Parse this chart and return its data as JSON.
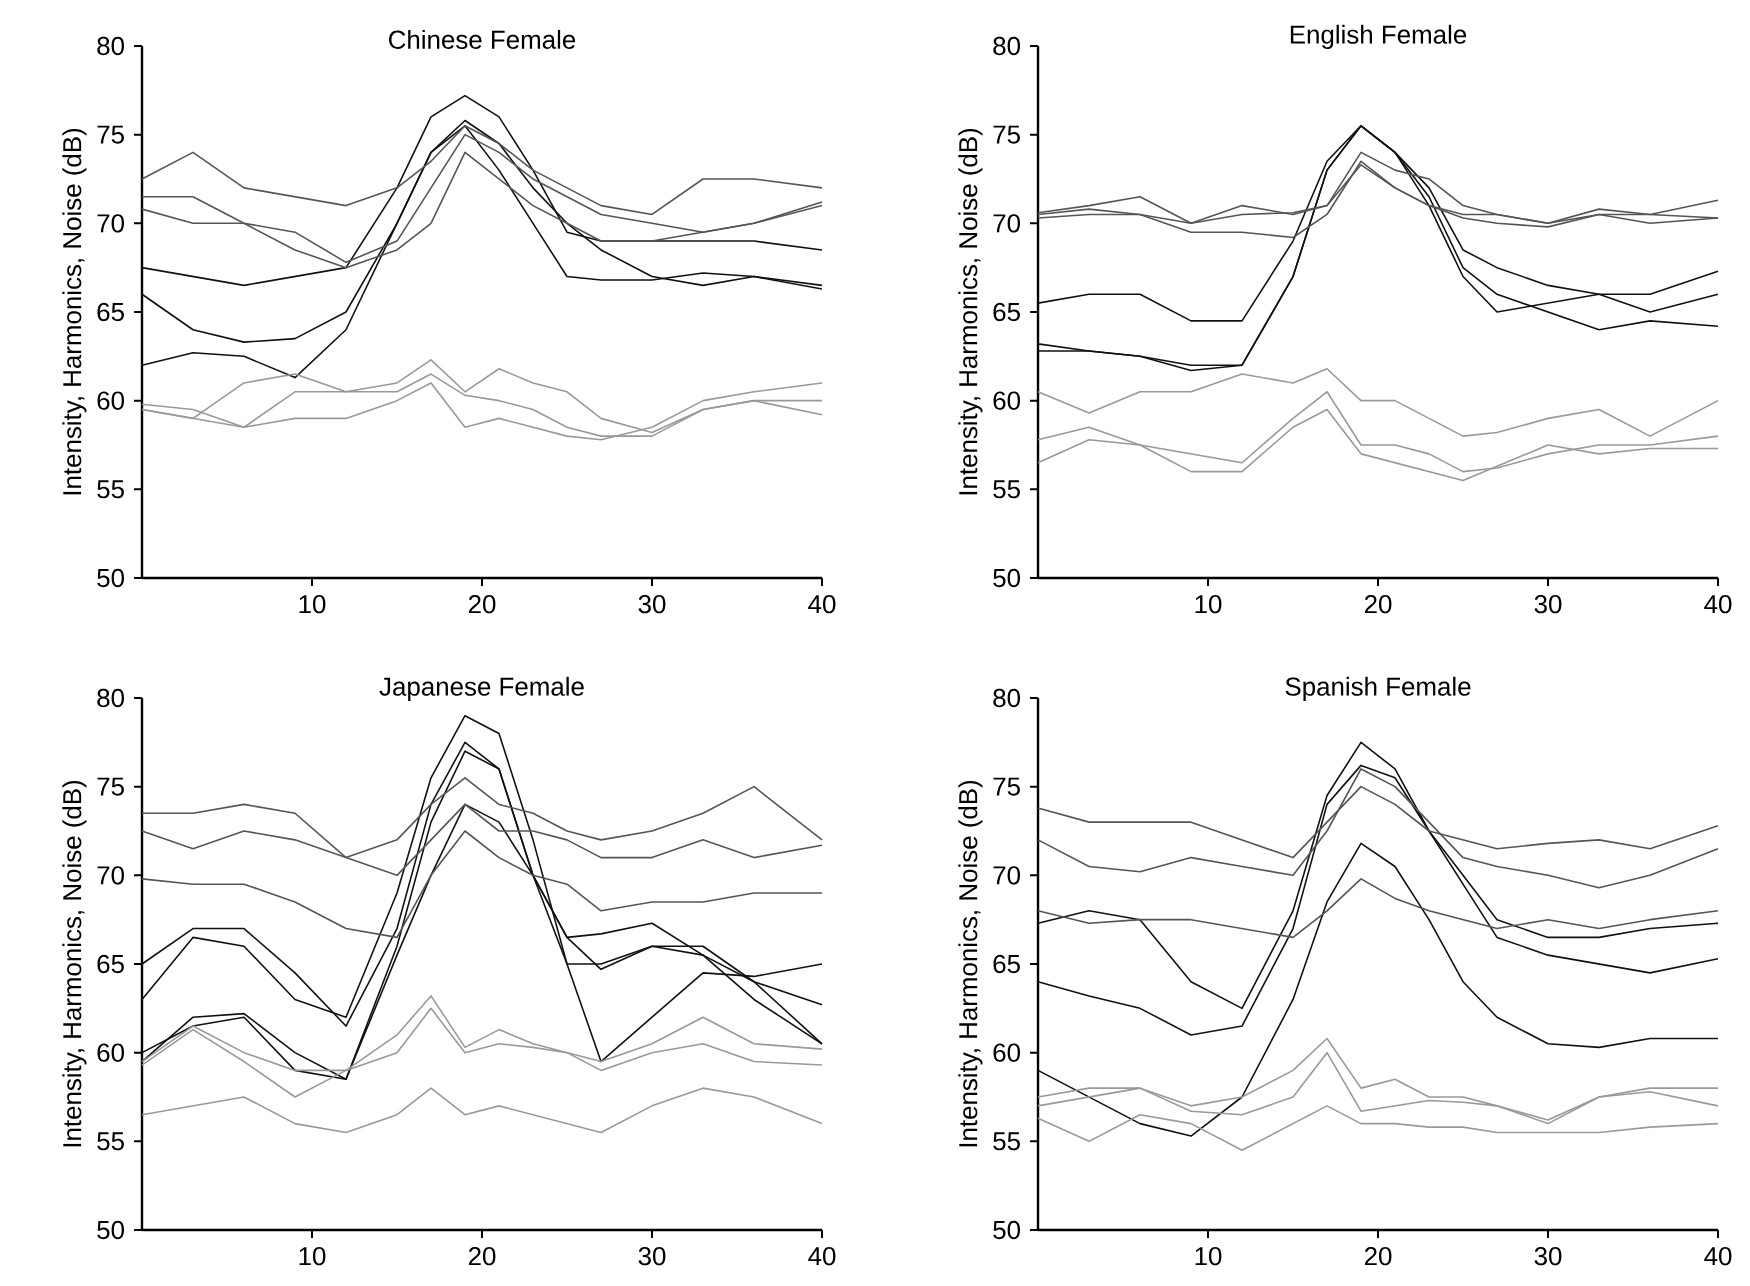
{
  "chart_data": [
    {
      "type": "line",
      "title": "Chinese Female",
      "ylabel": "Intensity, Harmonics, Noise (dB)",
      "x": [
        0,
        3,
        6,
        9,
        12,
        15,
        17,
        19,
        21,
        23,
        25,
        27,
        30,
        33,
        36,
        40
      ],
      "xlim": [
        0,
        40
      ],
      "xticks": [
        10,
        20,
        30,
        40
      ],
      "ylim": [
        50,
        80
      ],
      "yticks": [
        50,
        55,
        60,
        65,
        70,
        75,
        80
      ],
      "series": [
        {
          "color": "#111111",
          "values": [
            67.5,
            67,
            66.5,
            67,
            67.5,
            72,
            76,
            77.2,
            76,
            73,
            69.5,
            69,
            69,
            69,
            69,
            68.5
          ]
        },
        {
          "color": "#111111",
          "values": [
            66,
            64,
            63.3,
            63.5,
            65,
            70,
            74,
            75.8,
            74.5,
            72,
            70,
            68.5,
            67,
            66.5,
            67,
            66.5
          ]
        },
        {
          "color": "#111111",
          "values": [
            62,
            62.7,
            62.5,
            61.3,
            64,
            70,
            74,
            75.5,
            73,
            70,
            67,
            66.8,
            66.8,
            67.2,
            67,
            66.3
          ]
        },
        {
          "color": "#555555",
          "values": [
            72.5,
            74,
            72,
            71.5,
            71,
            72,
            73.5,
            75.5,
            74.5,
            73,
            72,
            71,
            70.5,
            72.5,
            72.5,
            72
          ]
        },
        {
          "color": "#555555",
          "values": [
            71.5,
            71.5,
            70,
            69.5,
            67.8,
            69,
            72,
            75,
            74,
            72.5,
            71.5,
            70.5,
            70,
            69.5,
            70,
            71.2
          ]
        },
        {
          "color": "#555555",
          "values": [
            70.8,
            70,
            70,
            68.5,
            67.5,
            68.5,
            70,
            74,
            72.5,
            71,
            70,
            69,
            69,
            69.5,
            70,
            71
          ]
        },
        {
          "color": "#999999",
          "values": [
            59.8,
            59.5,
            58.5,
            59,
            59,
            60,
            61,
            58.5,
            59,
            58.5,
            58,
            57.8,
            58.5,
            60,
            60.5,
            61
          ]
        },
        {
          "color": "#999999",
          "values": [
            59.5,
            59,
            61,
            61.5,
            60.5,
            61,
            62.3,
            60.5,
            61.8,
            61,
            60.5,
            59,
            58.2,
            59.5,
            60,
            60
          ]
        },
        {
          "color": "#999999",
          "values": [
            59.5,
            59,
            58.5,
            60.5,
            60.5,
            60.5,
            61.5,
            60.3,
            60,
            59.5,
            58.5,
            58,
            58,
            59.5,
            60,
            59.2
          ]
        }
      ]
    },
    {
      "type": "line",
      "title": "English Female",
      "ylabel": "Intensity, Harmonics, Noise (dB)",
      "x": [
        0,
        3,
        6,
        9,
        12,
        15,
        17,
        19,
        21,
        23,
        25,
        27,
        30,
        33,
        36,
        40
      ],
      "xlim": [
        0,
        40
      ],
      "xticks": [
        10,
        20,
        30,
        40
      ],
      "ylim": [
        50,
        80
      ],
      "yticks": [
        50,
        55,
        60,
        65,
        70,
        75,
        80
      ],
      "series": [
        {
          "color": "#111111",
          "values": [
            65.5,
            66,
            66,
            64.5,
            64.5,
            69,
            73.5,
            75.5,
            74,
            71,
            67,
            65,
            65.5,
            66,
            66,
            67.3
          ]
        },
        {
          "color": "#111111",
          "values": [
            63.2,
            62.8,
            62.5,
            62,
            62,
            67,
            73,
            75.5,
            74,
            72,
            68.5,
            67.5,
            66.5,
            66,
            65,
            66
          ]
        },
        {
          "color": "#111111",
          "values": [
            62.8,
            62.8,
            62.5,
            61.7,
            62,
            67,
            73,
            75.5,
            74,
            71.5,
            67.5,
            66,
            65,
            64,
            64.5,
            64.2
          ]
        },
        {
          "color": "#555555",
          "values": [
            70.6,
            71,
            71.5,
            70,
            71,
            70.5,
            71,
            74,
            73,
            72.5,
            71,
            70.5,
            70,
            70.5,
            70.5,
            71.3
          ]
        },
        {
          "color": "#555555",
          "values": [
            70.5,
            70.8,
            70.5,
            69.5,
            69.5,
            69.2,
            70.5,
            73.5,
            72,
            71,
            70.5,
            70.5,
            70,
            70.8,
            70.5,
            70.3
          ]
        },
        {
          "color": "#555555",
          "values": [
            70.3,
            70.5,
            70.5,
            70,
            70.5,
            70.6,
            71,
            73.3,
            72,
            71,
            70.3,
            70,
            69.8,
            70.5,
            70,
            70.3
          ]
        },
        {
          "color": "#999999",
          "values": [
            60.5,
            59.3,
            60.5,
            60.5,
            61.5,
            61,
            61.8,
            60,
            60,
            59,
            58,
            58.2,
            59,
            59.5,
            58,
            60
          ]
        },
        {
          "color": "#999999",
          "values": [
            57.8,
            58.5,
            57.5,
            57,
            56.5,
            59,
            60.5,
            57.5,
            57.5,
            57,
            56,
            56.2,
            57,
            57.5,
            57.5,
            58
          ]
        },
        {
          "color": "#999999",
          "values": [
            56.5,
            57.8,
            57.5,
            56,
            56,
            58.5,
            59.5,
            57,
            56.5,
            56,
            55.5,
            56.3,
            57.5,
            57,
            57.3,
            57.3
          ]
        }
      ]
    },
    {
      "type": "line",
      "title": "Japanese Female",
      "ylabel": "Intensity, Harmonics, Noise (dB)",
      "x": [
        0,
        3,
        6,
        9,
        12,
        15,
        17,
        19,
        21,
        23,
        25,
        27,
        30,
        33,
        36,
        40
      ],
      "xlim": [
        0,
        40
      ],
      "xticks": [
        10,
        20,
        30,
        40
      ],
      "ylim": [
        50,
        80
      ],
      "yticks": [
        50,
        55,
        60,
        65,
        70,
        75,
        80
      ],
      "series": [
        {
          "color": "#111111",
          "values": [
            63,
            66.5,
            66,
            63,
            62,
            69,
            75.5,
            79,
            78,
            72,
            65,
            59.5,
            62,
            64.5,
            64.3,
            65
          ]
        },
        {
          "color": "#111111",
          "values": [
            65,
            67,
            67,
            64.5,
            61.5,
            67,
            74,
            77.5,
            76,
            70,
            66.5,
            66.7,
            67.3,
            65.5,
            63,
            60.5
          ]
        },
        {
          "color": "#111111",
          "values": [
            59.5,
            62,
            62.2,
            60,
            58.5,
            66,
            73,
            77,
            76,
            70,
            65,
            65,
            66,
            65.5,
            64,
            62.7
          ]
        },
        {
          "color": "#111111",
          "values": [
            60,
            61.5,
            62,
            59,
            58.5,
            65.5,
            70,
            74,
            73,
            70,
            66.5,
            64.7,
            66,
            66,
            64,
            60.5
          ]
        },
        {
          "color": "#555555",
          "values": [
            73.5,
            73.5,
            74,
            73.5,
            71,
            72,
            74,
            75.5,
            74,
            73.5,
            72.5,
            72,
            72.5,
            73.5,
            75,
            72
          ]
        },
        {
          "color": "#555555",
          "values": [
            72.5,
            71.5,
            72.5,
            72,
            71,
            70,
            72,
            74,
            72.5,
            72.5,
            72,
            71,
            71,
            72,
            71,
            71.7
          ]
        },
        {
          "color": "#555555",
          "values": [
            69.8,
            69.5,
            69.5,
            68.5,
            67,
            66.5,
            70,
            72.5,
            71,
            70,
            69.5,
            68,
            68.5,
            68.5,
            69,
            69
          ]
        },
        {
          "color": "#999999",
          "values": [
            59.5,
            61.5,
            60,
            59,
            59,
            61,
            63.2,
            60.3,
            61.3,
            60.5,
            60,
            59.5,
            60.5,
            62,
            60.5,
            60.2
          ]
        },
        {
          "color": "#999999",
          "values": [
            59.3,
            61.3,
            59.5,
            57.5,
            59,
            60,
            62.5,
            60,
            60.5,
            60.3,
            60,
            59,
            60,
            60.5,
            59.5,
            59.3
          ]
        },
        {
          "color": "#999999",
          "values": [
            56.5,
            57,
            57.5,
            56,
            55.5,
            56.5,
            58,
            56.5,
            57,
            56.5,
            56,
            55.5,
            57,
            58,
            57.5,
            56
          ]
        }
      ]
    },
    {
      "type": "line",
      "title": "Spanish Female",
      "ylabel": "Intensity, Harmonics, Noise (dB)",
      "x": [
        0,
        3,
        6,
        9,
        12,
        15,
        17,
        19,
        21,
        23,
        25,
        27,
        30,
        33,
        36,
        40
      ],
      "xlim": [
        0,
        40
      ],
      "xticks": [
        10,
        20,
        30,
        40
      ],
      "ylim": [
        50,
        80
      ],
      "yticks": [
        50,
        55,
        60,
        65,
        70,
        75,
        80
      ],
      "series": [
        {
          "color": "#111111",
          "values": [
            67.3,
            68,
            67.5,
            64,
            62.5,
            68,
            74.5,
            77.5,
            76,
            72.5,
            70,
            67.5,
            66.5,
            66.5,
            67,
            67.3
          ]
        },
        {
          "color": "#111111",
          "values": [
            64,
            63.2,
            62.5,
            61,
            61.5,
            67,
            74,
            76.2,
            75.5,
            72.5,
            69.5,
            66.5,
            65.5,
            65,
            64.5,
            65.3
          ]
        },
        {
          "color": "#111111",
          "values": [
            59,
            57.5,
            56,
            55.3,
            57.5,
            63,
            68.5,
            71.8,
            70.5,
            67.5,
            64,
            62,
            60.5,
            60.3,
            60.8,
            60.8
          ]
        },
        {
          "color": "#555555",
          "values": [
            73.8,
            73,
            73,
            73,
            72,
            71,
            73,
            75,
            74,
            72.5,
            72,
            71.5,
            71.8,
            72,
            71.5,
            72.8
          ]
        },
        {
          "color": "#555555",
          "values": [
            72,
            70.5,
            70.2,
            71,
            70.5,
            70,
            72.5,
            76,
            75,
            73,
            71,
            70.5,
            70,
            69.3,
            70,
            71.5
          ]
        },
        {
          "color": "#555555",
          "values": [
            68,
            67.3,
            67.5,
            67.5,
            67,
            66.5,
            68,
            69.8,
            68.7,
            68,
            67.5,
            67,
            67.5,
            67,
            67.5,
            68
          ]
        },
        {
          "color": "#999999",
          "values": [
            57.5,
            58,
            58,
            57,
            57.5,
            59,
            60.8,
            58,
            58.5,
            57.5,
            57.5,
            57,
            56.2,
            57.5,
            58,
            58
          ]
        },
        {
          "color": "#999999",
          "values": [
            57,
            57.5,
            58,
            56.7,
            56.5,
            57.5,
            60,
            56.7,
            57,
            57.3,
            57.2,
            57,
            56,
            57.5,
            57.8,
            57
          ]
        },
        {
          "color": "#999999",
          "values": [
            56.3,
            55,
            56.5,
            56,
            54.5,
            56,
            57,
            56,
            56,
            55.8,
            55.8,
            55.5,
            55.5,
            55.5,
            55.8,
            56
          ]
        }
      ]
    }
  ]
}
